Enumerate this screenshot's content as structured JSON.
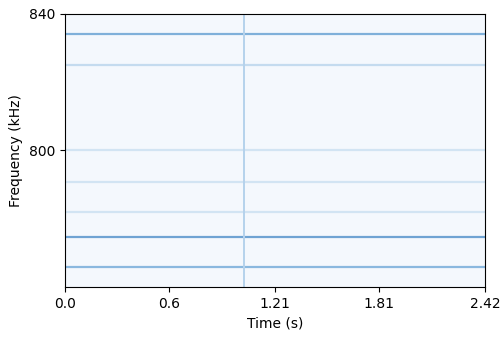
{
  "chart_data": {
    "type": "spectrogram",
    "x_label": "Time (s)",
    "y_label": "Frequency (kHz)",
    "xlim": [
      0.0,
      2.42
    ],
    "xticks": [
      0.0,
      0.6,
      1.21,
      1.81,
      2.42
    ],
    "ylim": [
      760,
      840
    ],
    "yticks": [
      800,
      840
    ],
    "tones": [
      {
        "frequency": 834.2,
        "color": "#7fb0da"
      },
      {
        "frequency": 825.0,
        "color": "#c4dbef"
      },
      {
        "frequency": 800.0,
        "color": "#d2e4f3"
      },
      {
        "frequency": 790.8,
        "color": "#d2e4f3"
      },
      {
        "frequency": 782.0,
        "color": "#d2e4f3"
      },
      {
        "frequency": 774.7,
        "color": "#6fa3d3"
      },
      {
        "frequency": 765.8,
        "color": "#8ab8df"
      }
    ],
    "transients": [
      {
        "time": 1.03,
        "color": "#b5d2ec"
      }
    ]
  }
}
